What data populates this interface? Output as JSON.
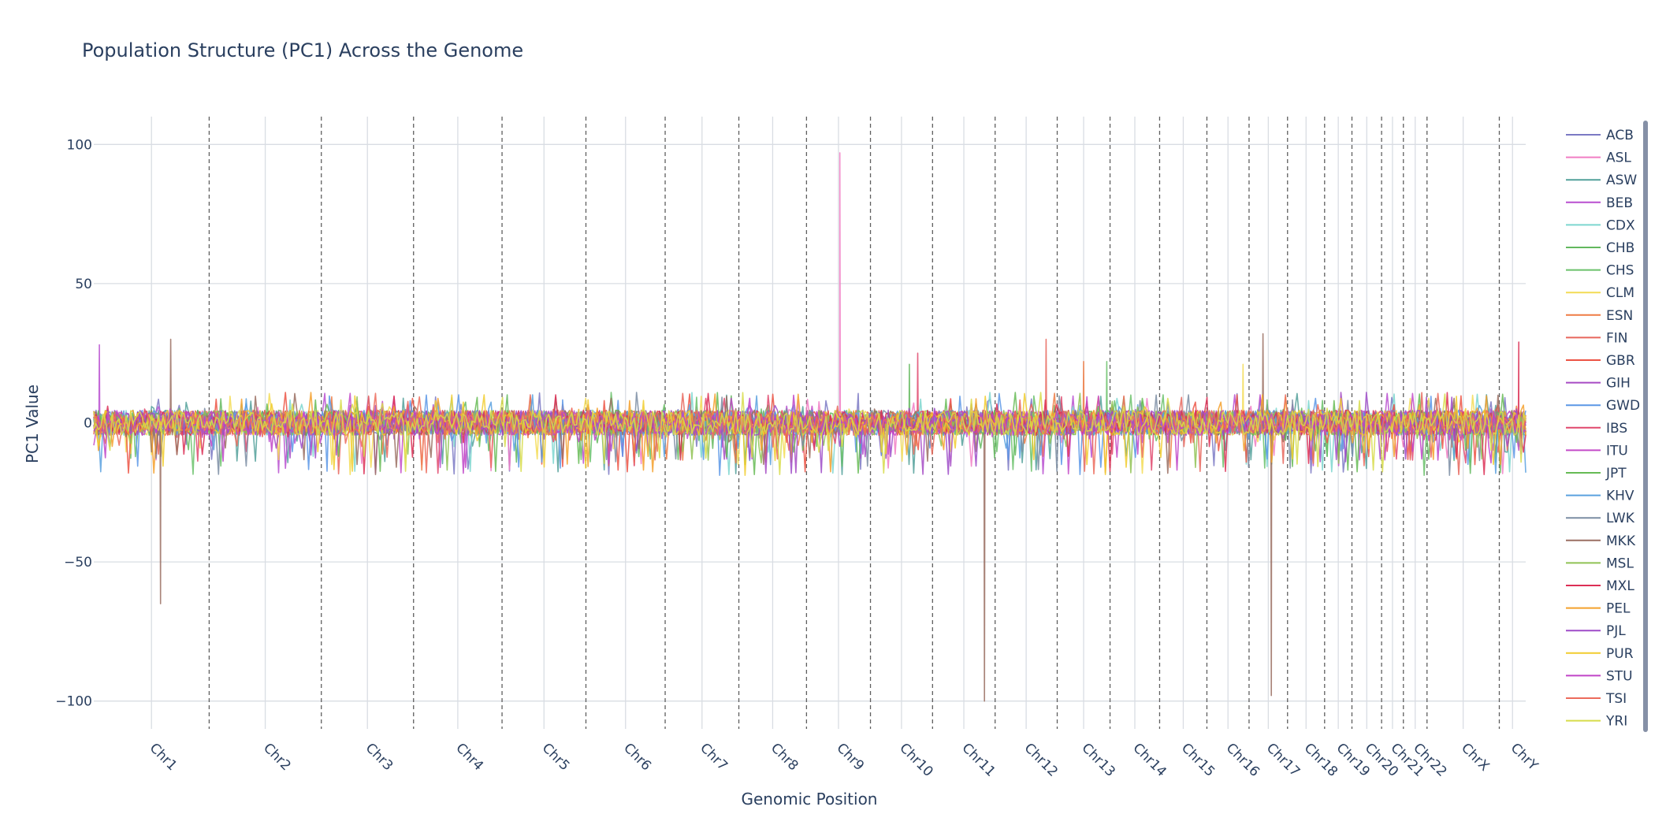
{
  "chart_data": {
    "type": "line",
    "title": "Population Structure (PC1) Across the Genome",
    "xlabel": "Genomic Position",
    "ylabel": "PC1 Value",
    "ylim": [
      -110,
      110
    ],
    "y_ticks": [
      100,
      50,
      0,
      -50,
      -100
    ],
    "y_tick_labels": [
      "100",
      "50",
      "0",
      "−50",
      "−100"
    ],
    "grid": true,
    "legend_position": "right",
    "chromosomes": [
      {
        "name": "Chr1",
        "start": 0,
        "end": 249
      },
      {
        "name": "Chr2",
        "start": 249,
        "end": 491
      },
      {
        "name": "Chr3",
        "start": 491,
        "end": 690
      },
      {
        "name": "Chr4",
        "start": 690,
        "end": 881
      },
      {
        "name": "Chr5",
        "start": 881,
        "end": 1062
      },
      {
        "name": "Chr6",
        "start": 1062,
        "end": 1233
      },
      {
        "name": "Chr7",
        "start": 1233,
        "end": 1392
      },
      {
        "name": "Chr8",
        "start": 1392,
        "end": 1538
      },
      {
        "name": "Chr9",
        "start": 1538,
        "end": 1676
      },
      {
        "name": "Chr10",
        "start": 1676,
        "end": 1810
      },
      {
        "name": "Chr11",
        "start": 1810,
        "end": 1945
      },
      {
        "name": "Chr12",
        "start": 1945,
        "end": 2079
      },
      {
        "name": "Chr13",
        "start": 2079,
        "end": 2193
      },
      {
        "name": "Chr14",
        "start": 2193,
        "end": 2300
      },
      {
        "name": "Chr15",
        "start": 2300,
        "end": 2402
      },
      {
        "name": "Chr16",
        "start": 2402,
        "end": 2493
      },
      {
        "name": "Chr17",
        "start": 2493,
        "end": 2576
      },
      {
        "name": "Chr18",
        "start": 2576,
        "end": 2656
      },
      {
        "name": "Chr19",
        "start": 2656,
        "end": 2715
      },
      {
        "name": "Chr20",
        "start": 2715,
        "end": 2779
      },
      {
        "name": "Chr21",
        "start": 2779,
        "end": 2826
      },
      {
        "name": "Chr22",
        "start": 2826,
        "end": 2877
      },
      {
        "name": "ChrX",
        "start": 2877,
        "end": 3033
      },
      {
        "name": "ChrY",
        "start": 3033,
        "end": 3090
      }
    ],
    "series": [
      {
        "name": "ACB",
        "color": "#7b79c4",
        "spikes": []
      },
      {
        "name": "ASL",
        "color": "#f17ec4",
        "spikes": [
          [
            1610,
            97
          ]
        ]
      },
      {
        "name": "ASW",
        "color": "#52a09a",
        "spikes": []
      },
      {
        "name": "BEB",
        "color": "#b84fd0",
        "spikes": [
          [
            12,
            28
          ]
        ]
      },
      {
        "name": "CDX",
        "color": "#7dd6cf",
        "spikes": []
      },
      {
        "name": "CHB",
        "color": "#63b85e",
        "spikes": [
          [
            1760,
            21
          ]
        ]
      },
      {
        "name": "CHS",
        "color": "#6ac16a",
        "spikes": [
          [
            2186,
            22
          ]
        ]
      },
      {
        "name": "CLM",
        "color": "#f3dc55",
        "spikes": [
          [
            2480,
            21
          ]
        ]
      },
      {
        "name": "ESN",
        "color": "#ef7b43",
        "spikes": [
          [
            2136,
            22
          ]
        ]
      },
      {
        "name": "FIN",
        "color": "#e8665c",
        "spikes": [
          [
            2055,
            30
          ]
        ]
      },
      {
        "name": "GBR",
        "color": "#ec5344",
        "spikes": []
      },
      {
        "name": "GIH",
        "color": "#a64bc4",
        "spikes": []
      },
      {
        "name": "GWD",
        "color": "#5b97e6",
        "spikes": []
      },
      {
        "name": "IBS",
        "color": "#e0486d",
        "spikes": [
          [
            1778,
            25
          ]
        ]
      },
      {
        "name": "ITU",
        "color": "#c44bc8",
        "spikes": []
      },
      {
        "name": "JPT",
        "color": "#66bb55",
        "spikes": []
      },
      {
        "name": "KHV",
        "color": "#5aa1df",
        "spikes": []
      },
      {
        "name": "LWK",
        "color": "#7b8da3",
        "spikes": []
      },
      {
        "name": "MKK",
        "color": "#9a6f62",
        "spikes": [
          [
            166,
            30
          ],
          [
            144,
            -65
          ],
          [
            1922,
            -100
          ],
          [
            2523,
            32
          ],
          [
            2541,
            -98
          ]
        ]
      },
      {
        "name": "MSL",
        "color": "#8fc254",
        "spikes": []
      },
      {
        "name": "MXL",
        "color": "#dc2f55",
        "spikes": [
          [
            3075,
            29
          ]
        ]
      },
      {
        "name": "PEL",
        "color": "#f4a02b",
        "spikes": []
      },
      {
        "name": "PJL",
        "color": "#9e4bc8",
        "spikes": []
      },
      {
        "name": "PUR",
        "color": "#f1cc2e",
        "spikes": []
      },
      {
        "name": "STU",
        "color": "#c044c8",
        "spikes": []
      },
      {
        "name": "TSI",
        "color": "#ec6b5c",
        "spikes": []
      },
      {
        "name": "YRI",
        "color": "#d7dc4a",
        "spikes": []
      }
    ]
  }
}
